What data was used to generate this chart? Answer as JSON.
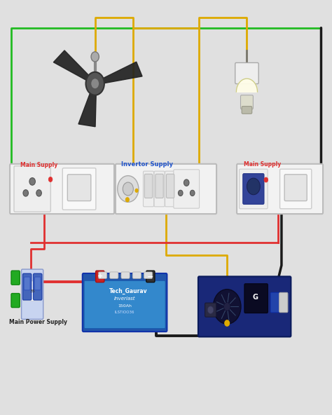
{
  "background_color": "#e0e0e0",
  "wire_colors": {
    "black": "#1a1a1a",
    "red": "#e03030",
    "green": "#22bb22",
    "yellow": "#ddaa00"
  },
  "labels": {
    "main_supply_left": "Main Supply",
    "main_supply_right": "Main Supply",
    "invertor_supply": "Invertor Supply",
    "main_power_supply": "Main Power Supply",
    "tech_gaurav": "Tech_Gaurav",
    "inverlast": "Inverlast",
    "battery_ah": "150Ah",
    "battery_model": "ILSTIOO36"
  }
}
